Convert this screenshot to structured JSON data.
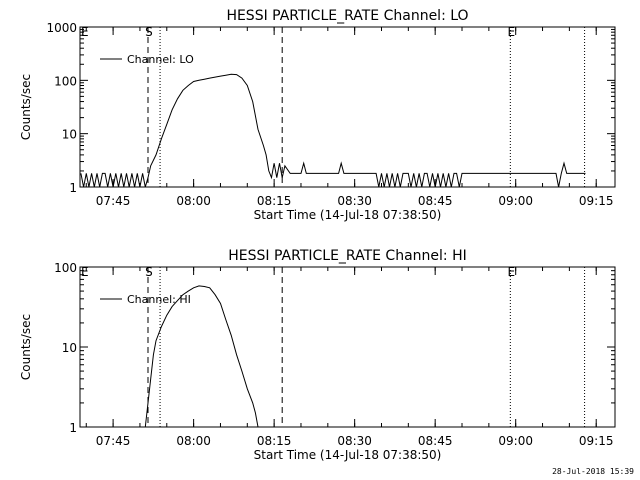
{
  "footer": {
    "timestamp": "28-Jul-2018 15:39"
  },
  "chart_data": [
    {
      "type": "line",
      "title": "HESSI PARTICLE_RATE Channel: LO",
      "xlabel": "Start Time (14-Jul-18 07:38:50)",
      "ylabel": "Counts/sec",
      "yscale": "log",
      "ylim": [
        1,
        1000
      ],
      "ytick_labels": [
        "1",
        "10",
        "100",
        "1000"
      ],
      "ytick_values": [
        1,
        10,
        100,
        1000
      ],
      "xlim": [
        "07:38:50",
        "09:18:30"
      ],
      "xtick_labels": [
        "07:45",
        "08:00",
        "08:15",
        "08:30",
        "08:45",
        "09:00",
        "09:15"
      ],
      "legend": {
        "label": "Channel: LO",
        "position": "top-left"
      },
      "markers": [
        {
          "label": "S",
          "time": "07:51:30",
          "style": "dashed"
        },
        {
          "label": "",
          "time": "07:53:45",
          "style": "dotted"
        },
        {
          "label": "",
          "time": "08:16:30",
          "style": "dashed"
        },
        {
          "label": "E",
          "time": "08:59:00",
          "style": "dotted"
        },
        {
          "label": "",
          "time": "09:12:50",
          "style": "dotted"
        }
      ],
      "corner_label": "E",
      "series": [
        {
          "name": "Channel: LO",
          "x": [
            "07:39:00",
            "07:39:30",
            "07:40:00",
            "07:40:30",
            "07:41:00",
            "07:41:30",
            "07:42:00",
            "07:42:30",
            "07:43:00",
            "07:43:30",
            "07:44:00",
            "07:44:30",
            "07:45:00",
            "07:45:30",
            "07:46:00",
            "07:46:30",
            "07:47:00",
            "07:47:30",
            "07:48:00",
            "07:48:30",
            "07:49:00",
            "07:49:30",
            "07:50:00",
            "07:50:30",
            "07:51:00",
            "07:51:30",
            "07:52:00",
            "07:53:00",
            "07:54:00",
            "07:55:00",
            "07:56:00",
            "07:57:00",
            "07:58:00",
            "07:59:00",
            "08:00:00",
            "08:01:00",
            "08:02:00",
            "08:03:00",
            "08:04:00",
            "08:05:00",
            "08:06:00",
            "08:07:00",
            "08:08:00",
            "08:09:00",
            "08:10:00",
            "08:11:00",
            "08:12:00",
            "08:13:00",
            "08:13:30",
            "08:14:00",
            "08:14:30",
            "08:15:00",
            "08:15:30",
            "08:16:00",
            "08:16:30",
            "08:17:00",
            "08:18:00",
            "08:19:00",
            "08:20:00",
            "08:20:30",
            "08:21:00",
            "08:22:00",
            "08:24:00",
            "08:26:00",
            "08:27:00",
            "08:27:30",
            "08:28:00",
            "08:30:00",
            "08:32:00",
            "08:34:00",
            "08:34:30",
            "08:35:00",
            "08:35:30",
            "08:36:00",
            "08:36:30",
            "08:37:00",
            "08:37:30",
            "08:38:00",
            "08:38:30",
            "08:39:00",
            "08:39:30",
            "08:40:00",
            "08:40:30",
            "08:41:00",
            "08:41:30",
            "08:42:00",
            "08:42:30",
            "08:43:00",
            "08:43:30",
            "08:44:00",
            "08:44:30",
            "08:45:00",
            "08:45:30",
            "08:46:00",
            "08:46:30",
            "08:47:00",
            "08:47:30",
            "08:48:00",
            "08:48:30",
            "08:49:00",
            "08:49:30",
            "08:50:00",
            "08:51:00",
            "08:52:00",
            "08:53:00",
            "08:54:00",
            "08:55:00",
            "08:56:00",
            "08:57:00",
            "08:58:00",
            "08:59:00",
            "09:00:00",
            "09:02:00",
            "09:04:00",
            "09:06:00",
            "09:07:30",
            "09:08:00",
            "09:08:30",
            "09:09:00",
            "09:09:30",
            "09:10:00",
            "09:11:00",
            "09:12:00",
            "09:13:00"
          ],
          "y": [
            1.8,
            1,
            1.8,
            1,
            1.8,
            1,
            1.8,
            1,
            1.8,
            1.8,
            1,
            1.8,
            1,
            1.8,
            1,
            1.8,
            1,
            1.8,
            1,
            1.8,
            1,
            1.8,
            1,
            1.8,
            1,
            1.5,
            2.5,
            4,
            8,
            15,
            28,
            45,
            65,
            80,
            95,
            100,
            105,
            110,
            115,
            120,
            125,
            130,
            128,
            110,
            80,
            40,
            12,
            6,
            4,
            2,
            1.5,
            2.8,
            1.5,
            2.8,
            1.5,
            2.5,
            1.8,
            1.8,
            1.8,
            2.8,
            1.8,
            1.8,
            1.8,
            1.8,
            1.8,
            2.8,
            1.8,
            1.8,
            1.8,
            1.8,
            1,
            1.8,
            1,
            1.8,
            1,
            1.8,
            1,
            1.8,
            1,
            1.8,
            1.8,
            1.8,
            1,
            1.8,
            1,
            1.8,
            1,
            1.8,
            1.8,
            1,
            1.8,
            1,
            1.8,
            1,
            1.8,
            1,
            1.8,
            1,
            1.8,
            1.8,
            1,
            1.8,
            1.8,
            1.8,
            1.8,
            1.8,
            1.8,
            1.8,
            1.8,
            1.8,
            1.8,
            1.8,
            1.8,
            1.8,
            1.8,
            1.8,
            1,
            1.8,
            2.8,
            1.8,
            1.8,
            1.8,
            1.8,
            1.8
          ]
        }
      ]
    },
    {
      "type": "line",
      "title": "HESSI PARTICLE_RATE Channel: HI",
      "xlabel": "Start Time (14-Jul-18 07:38:50)",
      "ylabel": "Counts/sec",
      "yscale": "log",
      "ylim": [
        1,
        100
      ],
      "ytick_labels": [
        "1",
        "10",
        "100"
      ],
      "ytick_values": [
        1,
        10,
        100
      ],
      "xlim": [
        "07:38:50",
        "09:18:30"
      ],
      "xtick_labels": [
        "07:45",
        "08:00",
        "08:15",
        "08:30",
        "08:45",
        "09:00",
        "09:15"
      ],
      "legend": {
        "label": "Channel: HI",
        "position": "top-left"
      },
      "markers": [
        {
          "label": "S",
          "time": "07:51:30",
          "style": "dashed"
        },
        {
          "label": "",
          "time": "07:53:45",
          "style": "dotted"
        },
        {
          "label": "",
          "time": "08:16:30",
          "style": "dashed"
        },
        {
          "label": "E",
          "time": "08:59:00",
          "style": "dotted"
        },
        {
          "label": "",
          "time": "09:12:50",
          "style": "dotted"
        }
      ],
      "corner_label": "E",
      "series": [
        {
          "name": "Channel: HI",
          "x": [
            "07:51:00",
            "07:51:30",
            "07:52:00",
            "07:52:30",
            "07:53:00",
            "07:54:00",
            "07:55:00",
            "07:56:00",
            "07:57:00",
            "07:58:00",
            "07:59:00",
            "08:00:00",
            "08:01:00",
            "08:02:00",
            "08:03:00",
            "08:04:00",
            "08:05:00",
            "08:06:00",
            "08:07:00",
            "08:08:00",
            "08:09:00",
            "08:10:00",
            "08:11:00",
            "08:11:30",
            "08:12:00"
          ],
          "y": [
            1,
            2,
            4,
            8,
            12,
            18,
            25,
            32,
            38,
            45,
            50,
            55,
            58,
            57,
            55,
            45,
            35,
            22,
            14,
            8,
            5,
            3,
            2,
            1.5,
            1
          ]
        }
      ]
    }
  ]
}
